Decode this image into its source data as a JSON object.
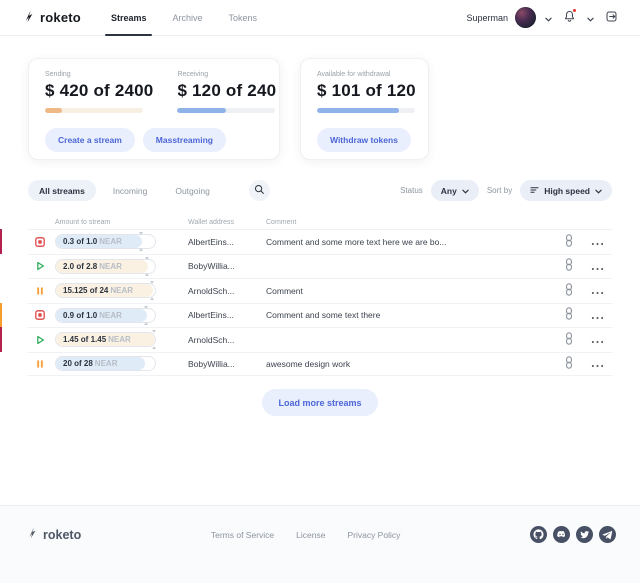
{
  "header": {
    "brand": "roketo",
    "nav": [
      {
        "label": "Streams",
        "active": true
      },
      {
        "label": "Archive",
        "active": false
      },
      {
        "label": "Tokens",
        "active": false
      }
    ],
    "user": {
      "name": "Superman"
    }
  },
  "cards": {
    "sending": {
      "label": "Sending",
      "display": "$ 420 of 2400",
      "value": 420,
      "total": 2400,
      "percent": 17.5
    },
    "receiving": {
      "label": "Receiving",
      "display": "$ 120 of 240",
      "value": 120,
      "total": 240,
      "percent": 50
    },
    "withdrawal": {
      "label": "Available for withdrawal",
      "display": "$ 101 of 120",
      "value": 101,
      "total": 120,
      "percent": 84
    },
    "buttons": {
      "create": "Create a stream",
      "mass": "Masstreaming",
      "withdraw": "Withdraw tokens"
    }
  },
  "filters": {
    "tabs": [
      {
        "label": "All streams",
        "active": true
      },
      {
        "label": "Incoming",
        "active": false
      },
      {
        "label": "Outgoing",
        "active": false
      }
    ],
    "status_label": "Status",
    "status_value": "Any",
    "sort_label": "Sort by",
    "sort_value": "High speed"
  },
  "table": {
    "columns": [
      "Amount to stream",
      "Wallet address",
      "Comment"
    ],
    "unit": "NEAR",
    "rows": [
      {
        "status": "stopped",
        "accent": "#b3224e",
        "amount": "0.3 of 1.0",
        "fill_percent": 87,
        "fill_tone": "blue",
        "marker": true,
        "wallet": "AlbertEins...",
        "comment": "Comment and some more text here we are bo..."
      },
      {
        "status": "active",
        "accent": null,
        "amount": "2.0 of 2.8",
        "fill_percent": 93,
        "fill_tone": "cream",
        "marker": true,
        "wallet": "BobyWillia...",
        "comment": ""
      },
      {
        "status": "paused",
        "accent": null,
        "amount": "15.125 of 24",
        "fill_percent": 98,
        "fill_tone": "cream",
        "marker": true,
        "wallet": "ArnoldSch...",
        "comment": "Comment"
      },
      {
        "status": "stopped",
        "accent": "#f59e2e",
        "amount": "0.9 of 1.0",
        "fill_percent": 92,
        "fill_tone": "blue",
        "marker": true,
        "wallet": "AlbertEins...",
        "comment": "Comment and some text there"
      },
      {
        "status": "active",
        "accent": "#b3224e",
        "amount": "1.45 of 1.45",
        "fill_percent": 100,
        "fill_tone": "cream",
        "marker": true,
        "wallet": "ArnoldSch...",
        "comment": ""
      },
      {
        "status": "paused",
        "accent": null,
        "amount": "20 of 28",
        "fill_percent": 90,
        "fill_tone": "blue",
        "marker": false,
        "wallet": "BobyWillia...",
        "comment": "awesome design work"
      }
    ],
    "load_more": "Load more streams"
  },
  "footer": {
    "brand": "roketo",
    "links": [
      "Terms of Service",
      "License",
      "Privacy Policy"
    ],
    "social": [
      "github",
      "discord",
      "twitter",
      "telegram"
    ]
  },
  "colors": {
    "accent_blue": "#4c66d8",
    "button_bg": "#e9effc",
    "sending_fill": "#eeb984",
    "receiving_fill": "#8fb3e8",
    "status_stop": "#e14646",
    "status_play": "#2eaf5d",
    "status_pause": "#f5a13c",
    "row_accent_red": "#b3224e",
    "row_accent_orange": "#f59e2e",
    "pill_fill_blue": "#e0ebf8",
    "pill_fill_cream": "#faf1e2"
  }
}
